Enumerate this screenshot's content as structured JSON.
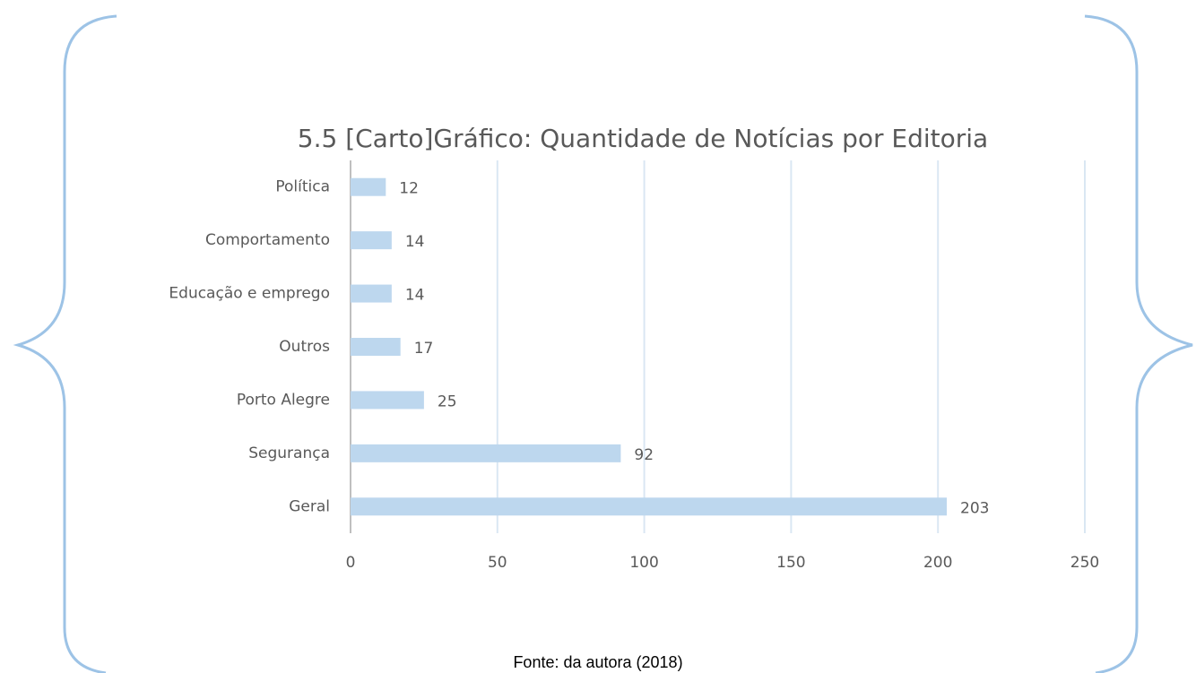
{
  "chart_data": {
    "type": "bar",
    "orientation": "horizontal",
    "title": "5.5 [Carto]Gráfico: Quantidade de Notícias por Editoria",
    "categories": [
      "Política",
      "Comportamento",
      "Educação e emprego",
      "Outros",
      "Porto Alegre",
      "Segurança",
      "Geral"
    ],
    "values": [
      12,
      14,
      14,
      17,
      25,
      92,
      203
    ],
    "color": "#bdd7ee",
    "xlim": [
      0,
      250
    ],
    "xticks": [
      0,
      50,
      100,
      150,
      200,
      250
    ],
    "grid": true,
    "source": "Fonte: da autora (2018)"
  }
}
